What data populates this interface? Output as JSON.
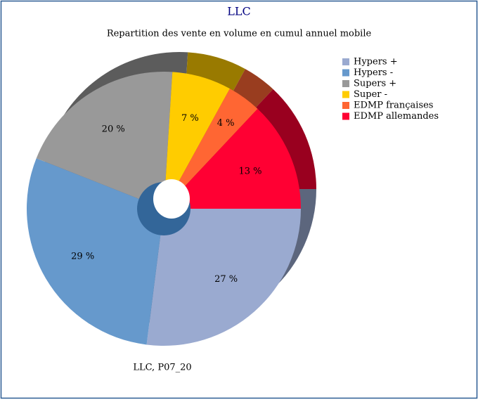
{
  "chart_data": {
    "type": "pie",
    "title": "LLC",
    "subtitle": "Repartition des vente en volume en cumul annuel mobile",
    "footer": "LLC, P07_20",
    "categories": [
      "Hypers +",
      "Hypers -",
      "Supers +",
      "Super -",
      "EDMP françaises",
      "EDMP allemandes"
    ],
    "values": [
      27,
      29,
      20,
      7,
      4,
      13
    ],
    "value_labels": [
      "27 %",
      "29 %",
      "20 %",
      "7 %",
      "4 %",
      "13 %"
    ],
    "colors": [
      "#9aaad0",
      "#6699cc",
      "#999999",
      "#ffcc00",
      "#ff6633",
      "#ff0033"
    ],
    "legend": "top-right"
  }
}
